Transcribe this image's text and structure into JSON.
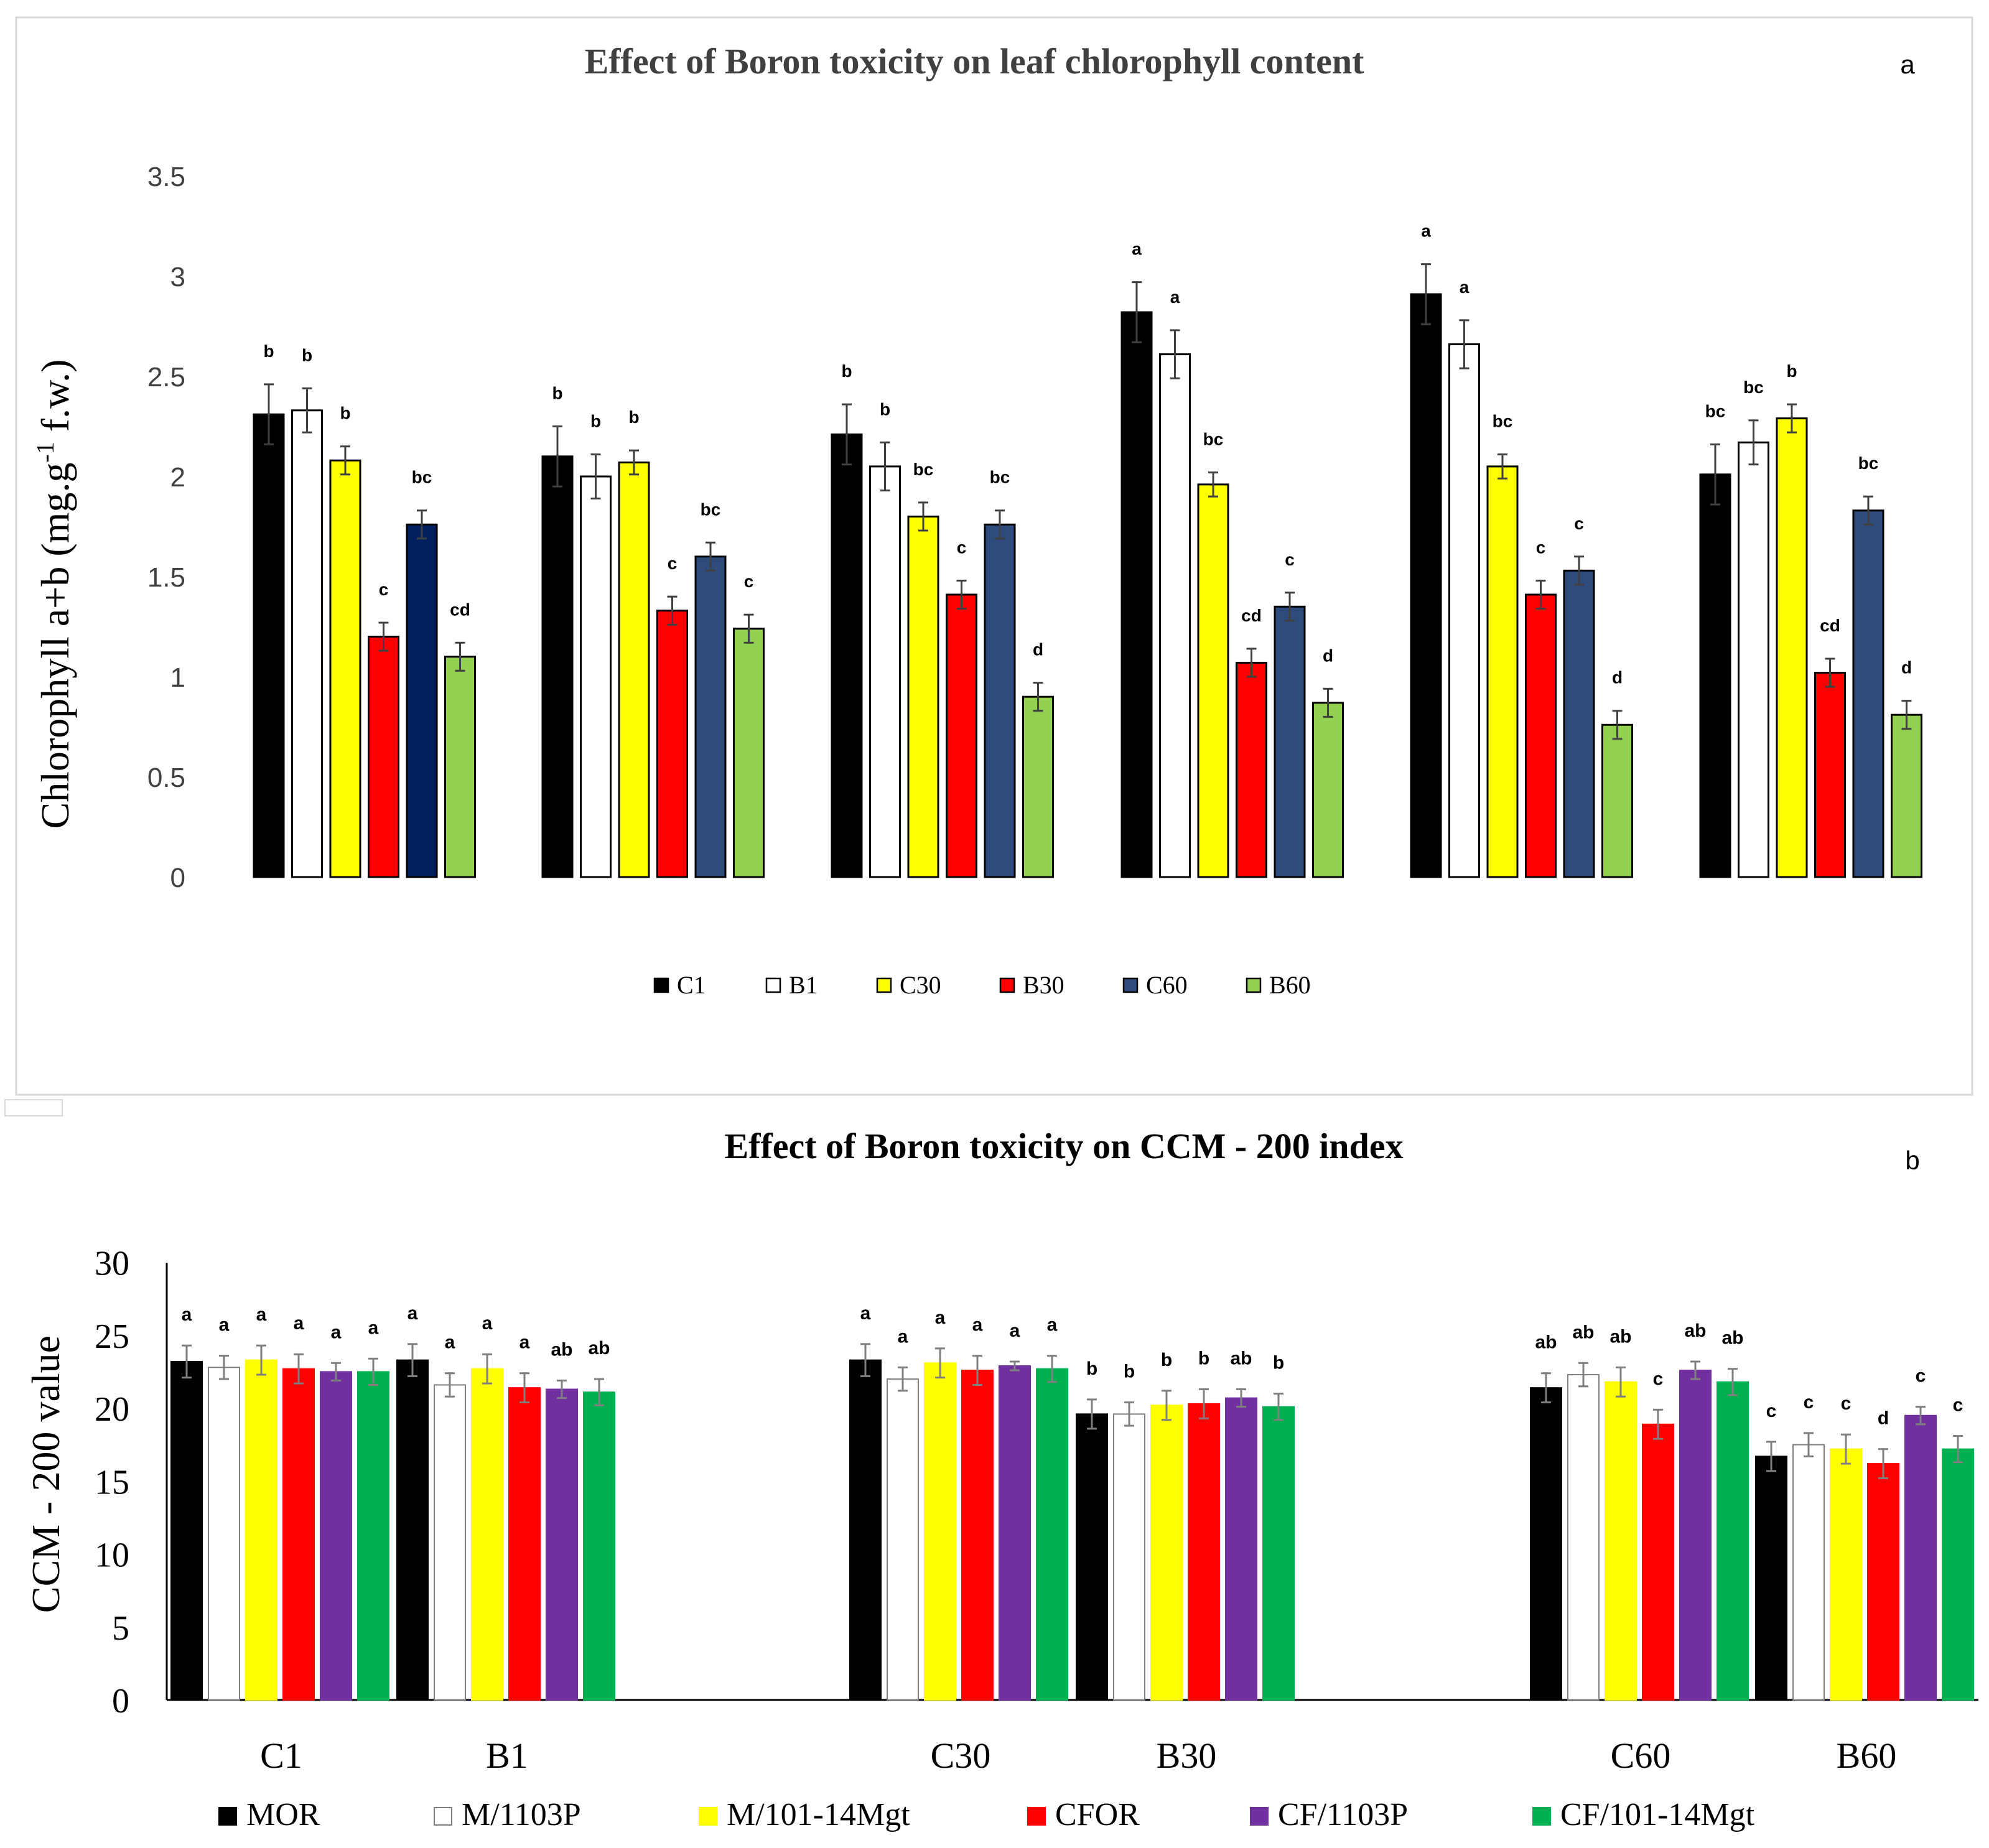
{
  "colors": {
    "panel_a": [
      "#000000",
      "#ffffff",
      "#ffff00",
      "#ff0000",
      "#002060",
      "#92d050"
    ],
    "panel_a_c60_other": "#2f4b7c",
    "panel_b": [
      "#000000",
      "#ffffff",
      "#ffff00",
      "#ff0000",
      "#7030a0",
      "#00b050"
    ]
  },
  "chart_data": [
    {
      "type": "bar",
      "panel_label": "a",
      "title": "Effect of Boron toxicity on leaf chlorophyll content",
      "ylabel": "Chlorophyll a+b (mg.g",
      "ylabel_sup": "-1",
      "ylabel_tail": " f.w.)",
      "xlabel": "",
      "ylim": [
        0,
        3.5
      ],
      "yticks": [
        "0",
        "0.5",
        "1",
        "1.5",
        "2",
        "2.5",
        "3",
        "3.5"
      ],
      "legend_position": "bottom",
      "groups": 6,
      "series": [
        {
          "name": "C1",
          "values": [
            2.31,
            2.1,
            2.21,
            2.82,
            2.91,
            2.01
          ],
          "errors": [
            0.15,
            0.15,
            0.15,
            0.15,
            0.15,
            0.15
          ],
          "letters": [
            "b",
            "b",
            "b",
            "a",
            "a",
            "bc"
          ]
        },
        {
          "name": "B1",
          "values": [
            2.33,
            2.0,
            2.05,
            2.61,
            2.66,
            2.17
          ],
          "errors": [
            0.11,
            0.11,
            0.12,
            0.12,
            0.12,
            0.11
          ],
          "letters": [
            "b",
            "b",
            "b",
            "a",
            "a",
            "bc"
          ]
        },
        {
          "name": "C30",
          "values": [
            2.08,
            2.07,
            1.8,
            1.96,
            2.05,
            2.29
          ],
          "errors": [
            0.07,
            0.06,
            0.07,
            0.06,
            0.06,
            0.07
          ],
          "letters": [
            "b",
            "b",
            "bc",
            "bc",
            "bc",
            "b"
          ]
        },
        {
          "name": "B30",
          "values": [
            1.2,
            1.33,
            1.41,
            1.07,
            1.41,
            1.02
          ],
          "errors": [
            0.07,
            0.07,
            0.07,
            0.07,
            0.07,
            0.07
          ],
          "letters": [
            "c",
            "c",
            "c",
            "cd",
            "c",
            "cd"
          ]
        },
        {
          "name": "C60",
          "values": [
            1.76,
            1.6,
            1.76,
            1.35,
            1.53,
            1.83
          ],
          "errors": [
            0.07,
            0.07,
            0.07,
            0.07,
            0.07,
            0.07
          ],
          "letters": [
            "bc",
            "bc",
            "bc",
            "c",
            "c",
            "bc"
          ]
        },
        {
          "name": "B60",
          "values": [
            1.1,
            1.24,
            0.9,
            0.87,
            0.76,
            0.81
          ],
          "errors": [
            0.07,
            0.07,
            0.07,
            0.07,
            0.07,
            0.07
          ],
          "letters": [
            "cd",
            "c",
            "d",
            "d",
            "d",
            "d"
          ]
        }
      ]
    },
    {
      "type": "bar",
      "panel_label": "b",
      "title": "Effect of Boron toxicity on CCM - 200 index",
      "ylabel": "CCM - 200 value",
      "xlabel": "",
      "ylim": [
        0,
        30
      ],
      "yticks": [
        "0",
        "5",
        "10",
        "15",
        "20",
        "25",
        "30"
      ],
      "legend_position": "bottom",
      "categories": [
        "C1",
        "B1",
        "C30",
        "B30",
        "C60",
        "B60"
      ],
      "series": [
        {
          "name": "MOR",
          "values": [
            23.2,
            23.3,
            23.3,
            19.6,
            21.4,
            16.7
          ],
          "errors": [
            1.1,
            1.1,
            1.1,
            1.0,
            1.0,
            1.0
          ],
          "letters": [
            "a",
            "a",
            "a",
            "b",
            "ab",
            "c"
          ]
        },
        {
          "name": "M/1103P",
          "values": [
            22.8,
            21.6,
            22.0,
            19.6,
            22.3,
            17.5
          ],
          "errors": [
            0.8,
            0.8,
            0.8,
            0.8,
            0.8,
            0.8
          ],
          "letters": [
            "a",
            "a",
            "a",
            "b",
            "ab",
            "c"
          ]
        },
        {
          "name": "M/101-14Mgt",
          "values": [
            23.3,
            22.7,
            23.1,
            20.2,
            21.8,
            17.2
          ],
          "errors": [
            1.0,
            1.0,
            1.0,
            1.0,
            1.0,
            1.0
          ],
          "letters": [
            "a",
            "a",
            "a",
            "b",
            "ab",
            "c"
          ]
        },
        {
          "name": "CFOR",
          "values": [
            22.7,
            21.4,
            22.6,
            20.3,
            18.9,
            16.2
          ],
          "errors": [
            1.0,
            1.0,
            1.0,
            1.0,
            1.0,
            1.0
          ],
          "letters": [
            "a",
            "a",
            "a",
            "b",
            "c",
            "d"
          ]
        },
        {
          "name": "CF/1103P",
          "values": [
            22.5,
            21.3,
            22.9,
            20.7,
            22.6,
            19.5
          ],
          "errors": [
            0.6,
            0.6,
            0.3,
            0.6,
            0.6,
            0.6
          ],
          "letters": [
            "a",
            "ab",
            "a",
            "ab",
            "ab",
            "c"
          ]
        },
        {
          "name": "CF/101-14Mgt",
          "values": [
            22.5,
            21.1,
            22.7,
            20.1,
            21.8,
            17.2
          ],
          "errors": [
            0.9,
            0.9,
            0.9,
            0.9,
            0.9,
            0.9
          ],
          "letters": [
            "a",
            "ab",
            "a",
            "b",
            "ab",
            "c"
          ]
        }
      ]
    }
  ]
}
